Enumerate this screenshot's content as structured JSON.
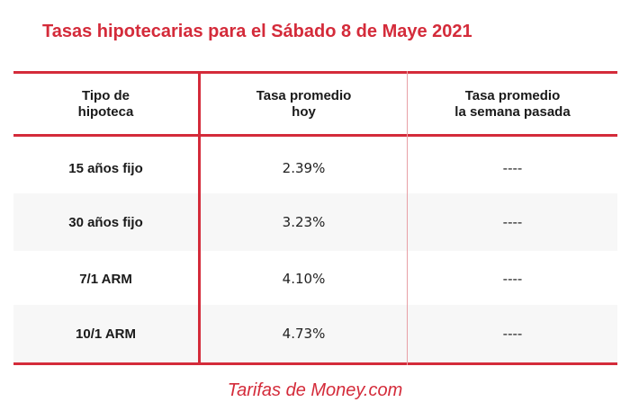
{
  "title": "Tasas hipotecarias para el Sábado 8 de Maye 2021",
  "table": {
    "headers": [
      "Tipo de\nhipoteca",
      "Tasa promedio\nhoy",
      "Tasa promedio\nla semana pasada"
    ],
    "rows": [
      {
        "type": "15 años fijo",
        "today": "2.39%",
        "last_week": "----"
      },
      {
        "type": "30 años fijo",
        "today": "3.23%",
        "last_week": "----"
      },
      {
        "type": "7/1 ARM",
        "today": "4.10%",
        "last_week": "----"
      },
      {
        "type": "10/1 ARM",
        "today": "4.73%",
        "last_week": "----"
      }
    ]
  },
  "footer": "Tarifas de Money.com",
  "colors": {
    "accent": "#d42b3a",
    "alt_row": "#f7f7f7",
    "text": "#1a1a1a"
  }
}
